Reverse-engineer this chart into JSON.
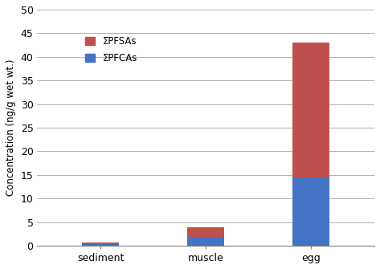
{
  "categories": [
    "sediment",
    "muscle",
    "egg"
  ],
  "pfcas": [
    0.55,
    1.7,
    14.5
  ],
  "pfsas": [
    0.15,
    2.3,
    28.5
  ],
  "pfcas_color": "#4472c4",
  "pfsas_color": "#c0504d",
  "ylabel": "Concentration (ng/g wet wt.)",
  "ylim": [
    0,
    50
  ],
  "yticks": [
    0,
    5,
    10,
    15,
    20,
    25,
    30,
    35,
    40,
    45,
    50
  ],
  "legend_pfcas": "ΣPFCAs",
  "legend_pfsas": "ΣPFSAs",
  "bar_width": 0.35,
  "background_color": "#ffffff",
  "grid_color": "#b0b0b0",
  "x_positions": [
    0,
    1,
    2
  ],
  "figsize": [
    4.73,
    3.35
  ],
  "dpi": 100
}
